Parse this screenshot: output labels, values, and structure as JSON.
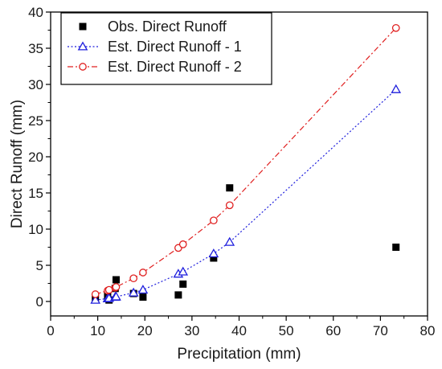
{
  "chart_data": {
    "type": "scatter",
    "xlabel": "Precipitation (mm)",
    "ylabel": "Direct Runoff (mm)",
    "xlim": [
      0,
      80
    ],
    "ylim": [
      -2,
      40
    ],
    "x_ticks": [
      0,
      10,
      20,
      30,
      40,
      50,
      60,
      70,
      80
    ],
    "y_ticks": [
      0,
      5,
      10,
      15,
      20,
      25,
      30,
      35,
      40
    ],
    "grid": false,
    "legend_position": "top-left",
    "series": [
      {
        "name": "Obs. Direct Runoff",
        "style": "markers",
        "marker": "square-filled",
        "color": "#000000",
        "points": [
          [
            9.5,
            0.3
          ],
          [
            12.1,
            0.8
          ],
          [
            12.4,
            0.2
          ],
          [
            13.7,
            1.8
          ],
          [
            13.9,
            3.0
          ],
          [
            17.6,
            1.1
          ],
          [
            19.6,
            0.6
          ],
          [
            27.1,
            0.9
          ],
          [
            28.1,
            2.4
          ],
          [
            34.6,
            6.0
          ],
          [
            38.0,
            15.7
          ],
          [
            73.3,
            7.5
          ]
        ]
      },
      {
        "name": "Est. Direct Runoff - 1",
        "style": "dotted-line-markers",
        "marker": "triangle-open",
        "color": "#1f1fdd",
        "points": [
          [
            9.5,
            0.2
          ],
          [
            12.1,
            0.4
          ],
          [
            12.4,
            0.45
          ],
          [
            13.7,
            0.6
          ],
          [
            13.9,
            0.65
          ],
          [
            17.6,
            1.2
          ],
          [
            19.6,
            1.6
          ],
          [
            27.1,
            3.8
          ],
          [
            28.1,
            4.1
          ],
          [
            34.6,
            6.6
          ],
          [
            38.0,
            8.2
          ],
          [
            73.3,
            29.3
          ]
        ]
      },
      {
        "name": "Est. Direct Runoff - 2",
        "style": "dash-dot-line-markers",
        "marker": "circle-open",
        "color": "#e02020",
        "points": [
          [
            9.5,
            1.0
          ],
          [
            12.1,
            1.5
          ],
          [
            12.4,
            1.6
          ],
          [
            13.7,
            1.9
          ],
          [
            13.9,
            2.0
          ],
          [
            17.6,
            3.2
          ],
          [
            19.6,
            4.0
          ],
          [
            27.1,
            7.4
          ],
          [
            28.1,
            7.9
          ],
          [
            34.6,
            11.2
          ],
          [
            38.0,
            13.3
          ],
          [
            73.3,
            37.8
          ]
        ]
      }
    ]
  }
}
